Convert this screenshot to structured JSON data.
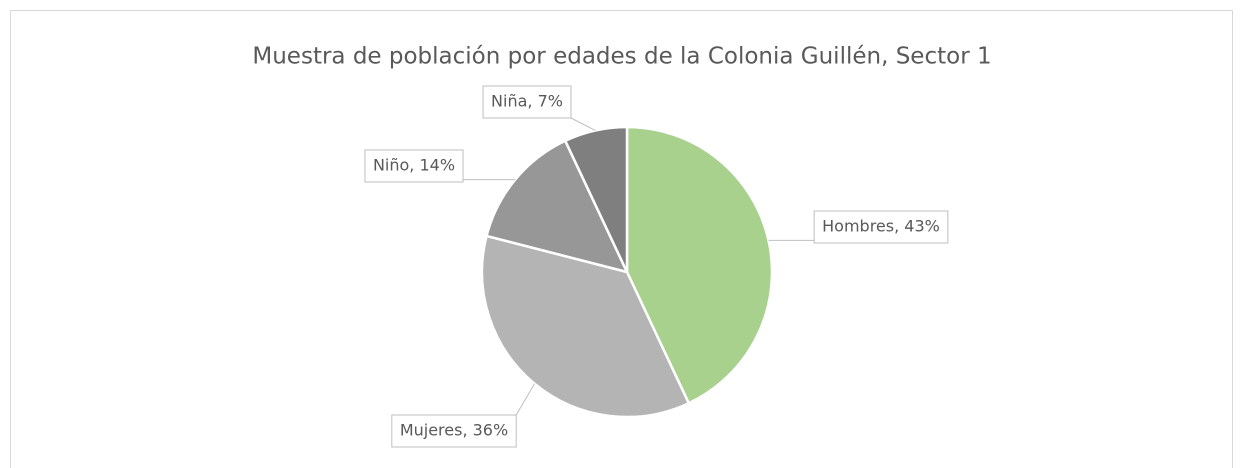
{
  "chart_data": {
    "type": "pie",
    "title": "Muestra de población por edades de la Colonia Guillén, Sector 1",
    "categories": [
      "Hombres",
      "Mujeres",
      "Niño",
      "Niña"
    ],
    "values": [
      43,
      36,
      14,
      7
    ],
    "value_labels": [
      "Hombres, 43%",
      "Mujeres, 36%",
      "Niño, 14%",
      "Niña, 7%"
    ],
    "colors": [
      "#a9d18e",
      "#b4b4b4",
      "#979797",
      "#7f7f7f"
    ]
  }
}
